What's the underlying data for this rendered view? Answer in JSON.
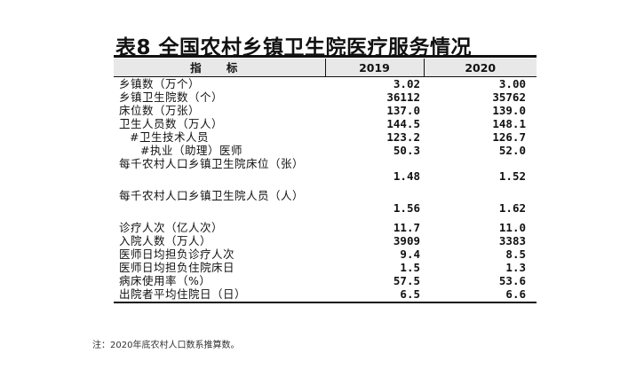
{
  "title": "表8  全国农村乡镇卫生院医疗服务情况",
  "header": {
    "indicator": "指 标",
    "col2019": "2019",
    "col2020": "2020"
  },
  "rows": [
    {
      "name": "乡镇数（万个）",
      "v2019": "3.02",
      "v2020": "3.00"
    },
    {
      "name": "乡镇卫生院数（个）",
      "v2019": "36112",
      "v2020": "35762"
    },
    {
      "name": "床位数（万张）",
      "v2019": "137.0",
      "v2020": "139.0"
    },
    {
      "name": "卫生人员数（万人）",
      "v2019": "144.5",
      "v2020": "148.1"
    },
    {
      "name": "#卫生技术人员",
      "v2019": "123.2",
      "v2020": "126.7"
    },
    {
      "name": "#执业（助理）医师",
      "v2019": "50.3",
      "v2020": "52.0"
    },
    {
      "name": "每千农村人口乡镇卫生院床位（张）",
      "v2019": "1.48",
      "v2020": "1.52"
    },
    {
      "name": "每千农村人口乡镇卫生院人员（人）",
      "v2019": "1.56",
      "v2020": "1.62"
    },
    {
      "name": "诊疗人次（亿人次）",
      "v2019": "11.7",
      "v2020": "11.0"
    },
    {
      "name": "入院人数（万人）",
      "v2019": "3909",
      "v2020": "3383"
    },
    {
      "name": "医师日均担负诊疗人次",
      "v2019": "9.4",
      "v2020": "8.5"
    },
    {
      "name": "医师日均担负住院床日",
      "v2019": "1.5",
      "v2020": "1.3"
    },
    {
      "name": "病床使用率（%）",
      "v2019": "57.5",
      "v2020": "53.6"
    },
    {
      "name": "出院者平均住院日（日）",
      "v2019": "6.5",
      "v2020": "6.6"
    }
  ],
  "note": "注：2020年底农村人口数系推算数。"
}
